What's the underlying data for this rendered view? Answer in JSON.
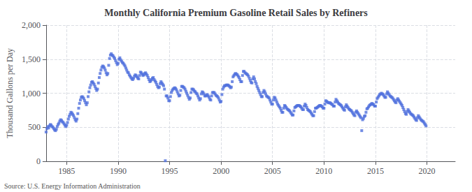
{
  "chart_data": {
    "type": "scatter",
    "title": "Monthly California Premium Gasoline Retail Sales by Refiners",
    "ylabel": "Thousand Gallons per Day",
    "annotations": [
      "Source: U.S. Energy Information Administration"
    ],
    "marker": "square",
    "grid": true,
    "xlim": [
      1983.0,
      2022.75
    ],
    "xticks": [
      1985,
      1990,
      1995,
      2000,
      2005,
      2010,
      2015,
      2020
    ],
    "ylim": [
      0,
      2000
    ],
    "yticks": [
      0,
      500,
      {
        "value": 1000,
        "label": "1,000"
      },
      {
        "value": 1500,
        "label": "1,500"
      },
      {
        "value": 2000,
        "label": "2,000"
      }
    ],
    "x": [
      1983.0,
      1983.0833333333333,
      1983.1666666666667,
      1983.25,
      1983.3333333333333,
      1983.4166666666667,
      1983.5,
      1983.5833333333333,
      1983.6666666666667,
      1983.75,
      1983.8333333333333,
      1983.9166666666667,
      1984.0,
      1984.0833333333333,
      1984.1666666666667,
      1984.25,
      1984.3333333333333,
      1984.4166666666667,
      1984.5,
      1984.5833333333333,
      1984.6666666666667,
      1984.75,
      1984.8333333333333,
      1984.9166666666667,
      1985.0,
      1985.0833333333333,
      1985.1666666666667,
      1985.25,
      1985.3333333333333,
      1985.4166666666667,
      1985.5,
      1985.5833333333333,
      1985.6666666666667,
      1985.75,
      1985.8333333333333,
      1985.9166666666667,
      1986.0,
      1986.0833333333333,
      1986.1666666666667,
      1986.25,
      1986.3333333333333,
      1986.4166666666667,
      1986.5,
      1986.5833333333333,
      1986.6666666666667,
      1986.75,
      1986.8333333333333,
      1986.9166666666667,
      1987.0,
      1987.0833333333333,
      1987.1666666666667,
      1987.25,
      1987.3333333333333,
      1987.4166666666667,
      1987.5,
      1987.5833333333333,
      1987.6666666666667,
      1987.75,
      1987.8333333333333,
      1987.9166666666667,
      1988.0,
      1988.0833333333333,
      1988.1666666666667,
      1988.25,
      1988.3333333333333,
      1988.4166666666667,
      1988.5,
      1988.5833333333333,
      1988.6666666666667,
      1988.75,
      1988.8333333333333,
      1988.9166666666667,
      1989.0,
      1989.0833333333333,
      1989.1666666666667,
      1989.25,
      1989.3333333333333,
      1989.4166666666667,
      1989.5,
      1989.5833333333333,
      1989.6666666666667,
      1989.75,
      1989.8333333333333,
      1989.9166666666667,
      1990.0,
      1990.0833333333333,
      1990.1666666666667,
      1990.25,
      1990.3333333333333,
      1990.4166666666667,
      1990.5,
      1990.5833333333333,
      1990.6666666666667,
      1990.75,
      1990.8333333333333,
      1990.9166666666667,
      1991.0,
      1991.0833333333333,
      1991.1666666666667,
      1991.25,
      1991.3333333333333,
      1991.4166666666667,
      1991.5,
      1991.5833333333333,
      1991.6666666666667,
      1991.75,
      1991.8333333333333,
      1991.9166666666667,
      1992.0,
      1992.0833333333333,
      1992.1666666666667,
      1992.25,
      1992.3333333333333,
      1992.4166666666667,
      1992.5,
      1992.5833333333333,
      1992.6666666666667,
      1992.75,
      1992.8333333333333,
      1992.9166666666667,
      1993.0,
      1993.0833333333333,
      1993.1666666666667,
      1993.25,
      1993.3333333333333,
      1993.4166666666667,
      1993.5,
      1993.5833333333333,
      1993.6666666666667,
      1993.75,
      1993.8333333333333,
      1993.9166666666667,
      1994.0,
      1994.0833333333333,
      1994.1666666666667,
      1994.25,
      1994.3333333333333,
      1994.4166666666667,
      1994.5,
      1994.5833333333333,
      1994.6666666666667,
      1994.75,
      1994.8333333333333,
      1994.9166666666667,
      1995.0,
      1995.0833333333333,
      1995.1666666666667,
      1995.25,
      1995.3333333333333,
      1995.4166666666667,
      1995.5,
      1995.5833333333333,
      1995.6666666666667,
      1995.75,
      1995.8333333333333,
      1995.9166666666667,
      1996.0,
      1996.0833333333333,
      1996.1666666666667,
      1996.25,
      1996.3333333333333,
      1996.4166666666667,
      1996.5,
      1996.5833333333333,
      1996.6666666666667,
      1996.75,
      1996.8333333333333,
      1996.9166666666667,
      1997.0,
      1997.0833333333333,
      1997.1666666666667,
      1997.25,
      1997.3333333333333,
      1997.4166666666667,
      1997.5,
      1997.5833333333333,
      1997.6666666666667,
      1997.75,
      1997.8333333333333,
      1997.9166666666667,
      1998.0,
      1998.0833333333333,
      1998.1666666666667,
      1998.25,
      1998.3333333333333,
      1998.4166666666667,
      1998.5,
      1998.5833333333333,
      1998.6666666666667,
      1998.75,
      1998.8333333333333,
      1998.9166666666667,
      1999.0,
      1999.0833333333333,
      1999.1666666666667,
      1999.25,
      1999.3333333333333,
      1999.4166666666667,
      1999.5,
      1999.5833333333333,
      1999.6666666666667,
      1999.75,
      1999.8333333333333,
      1999.9166666666667,
      2000.0,
      2000.0833333333333,
      2000.1666666666667,
      2000.25,
      2000.3333333333333,
      2000.4166666666667,
      2000.5,
      2000.5833333333333,
      2000.6666666666667,
      2000.75,
      2000.8333333333333,
      2000.9166666666667,
      2001.0,
      2001.0833333333333,
      2001.1666666666667,
      2001.25,
      2001.3333333333333,
      2001.4166666666667,
      2001.5,
      2001.5833333333333,
      2001.6666666666667,
      2001.75,
      2001.8333333333333,
      2001.9166666666667,
      2002.0,
      2002.0833333333333,
      2002.1666666666667,
      2002.25,
      2002.3333333333333,
      2002.4166666666667,
      2002.5,
      2002.5833333333333,
      2002.6666666666667,
      2002.75,
      2002.8333333333333,
      2002.9166666666667,
      2003.0,
      2003.0833333333333,
      2003.1666666666667,
      2003.25,
      2003.3333333333333,
      2003.4166666666667,
      2003.5,
      2003.5833333333333,
      2003.6666666666667,
      2003.75,
      2003.8333333333333,
      2003.9166666666667,
      2004.0,
      2004.0833333333333,
      2004.1666666666667,
      2004.25,
      2004.3333333333333,
      2004.4166666666667,
      2004.5,
      2004.5833333333333,
      2004.6666666666667,
      2004.75,
      2004.8333333333333,
      2004.9166666666667,
      2005.0,
      2005.0833333333333,
      2005.1666666666667,
      2005.25,
      2005.3333333333333,
      2005.4166666666667,
      2005.5,
      2005.5833333333333,
      2005.6666666666667,
      2005.75,
      2005.8333333333333,
      2005.9166666666667,
      2006.0,
      2006.0833333333333,
      2006.1666666666667,
      2006.25,
      2006.3333333333333,
      2006.4166666666667,
      2006.5,
      2006.5833333333333,
      2006.6666666666667,
      2006.75,
      2006.8333333333333,
      2006.9166666666667,
      2007.0,
      2007.0833333333333,
      2007.1666666666667,
      2007.25,
      2007.3333333333333,
      2007.4166666666667,
      2007.5,
      2007.5833333333333,
      2007.6666666666667,
      2007.75,
      2007.8333333333333,
      2007.9166666666667,
      2008.0,
      2008.0833333333333,
      2008.1666666666667,
      2008.25,
      2008.3333333333333,
      2008.4166666666667,
      2008.5,
      2008.5833333333333,
      2008.6666666666667,
      2008.75,
      2008.8333333333333,
      2008.9166666666667,
      2009.0,
      2009.0833333333333,
      2009.1666666666667,
      2009.25,
      2009.3333333333333,
      2009.4166666666667,
      2009.5,
      2009.5833333333333,
      2009.6666666666667,
      2009.75,
      2009.8333333333333,
      2009.9166666666667,
      2010.0,
      2010.0833333333333,
      2010.1666666666667,
      2010.25,
      2010.3333333333333,
      2010.4166666666667,
      2010.5,
      2010.5833333333333,
      2010.6666666666667,
      2010.75,
      2010.8333333333333,
      2010.9166666666667,
      2011.0,
      2011.0833333333333,
      2011.1666666666667,
      2011.25,
      2011.3333333333333,
      2011.4166666666667,
      2011.5,
      2011.5833333333333,
      2011.6666666666667,
      2011.75,
      2011.8333333333333,
      2011.9166666666667,
      2012.0,
      2012.0833333333333,
      2012.1666666666667,
      2012.25,
      2012.3333333333333,
      2012.4166666666667,
      2012.5,
      2012.5833333333333,
      2012.6666666666667,
      2012.75,
      2012.8333333333333,
      2012.9166666666667,
      2013.0,
      2013.0833333333333,
      2013.1666666666667,
      2013.25,
      2013.3333333333333,
      2013.4166666666667,
      2013.5,
      2013.5833333333333,
      2013.6666666666667,
      2013.75,
      2013.8333333333333,
      2013.9166666666667,
      2014.0,
      2014.0833333333333,
      2014.1666666666667,
      2014.25,
      2014.3333333333333,
      2014.4166666666667,
      2014.5,
      2014.5833333333333,
      2014.6666666666667,
      2014.75,
      2014.8333333333333,
      2014.9166666666667,
      2015.0,
      2015.0833333333333,
      2015.1666666666667,
      2015.25,
      2015.3333333333333,
      2015.4166666666667,
      2015.5,
      2015.5833333333333,
      2015.6666666666667,
      2015.75,
      2015.8333333333333,
      2015.9166666666667,
      2016.0,
      2016.0833333333333,
      2016.1666666666667,
      2016.25,
      2016.3333333333333,
      2016.4166666666667,
      2016.5,
      2016.5833333333333,
      2016.6666666666667,
      2016.75,
      2016.8333333333333,
      2016.9166666666667,
      2017.0,
      2017.0833333333333,
      2017.1666666666667,
      2017.25,
      2017.3333333333333,
      2017.4166666666667,
      2017.5,
      2017.5833333333333,
      2017.6666666666667,
      2017.75,
      2017.8333333333333,
      2017.9166666666667,
      2018.0,
      2018.0833333333333,
      2018.1666666666667,
      2018.25,
      2018.3333333333333,
      2018.4166666666667,
      2018.5,
      2018.5833333333333,
      2018.6666666666667,
      2018.75,
      2018.8333333333333,
      2018.9166666666667,
      2019.0,
      2019.0833333333333,
      2019.1666666666667,
      2019.25,
      2019.3333333333333,
      2019.4166666666667,
      2019.5,
      2019.5833333333333,
      2019.6666666666667,
      2019.75,
      2019.8333333333333,
      2019.9166666666667
    ],
    "values": [
      430,
      480,
      510,
      490,
      520,
      540,
      530,
      510,
      500,
      480,
      460,
      450,
      470,
      510,
      540,
      560,
      590,
      610,
      600,
      580,
      570,
      550,
      530,
      510,
      530,
      570,
      620,
      660,
      690,
      720,
      710,
      690,
      670,
      640,
      610,
      590,
      620,
      700,
      780,
      850,
      900,
      940,
      950,
      940,
      920,
      890,
      860,
      830,
      860,
      950,
      1020,
      1080,
      1120,
      1160,
      1170,
      1150,
      1130,
      1100,
      1070,
      1040,
      1060,
      1150,
      1230,
      1290,
      1340,
      1380,
      1400,
      1390,
      1370,
      1340,
      1300,
      1270,
      1290,
      1410,
      1510,
      1560,
      1580,
      1560,
      1550,
      1530,
      1510,
      1480,
      1450,
      1420,
      1440,
      1500,
      1520,
      1490,
      1470,
      1450,
      1440,
      1420,
      1400,
      1370,
      1340,
      1310,
      1300,
      1270,
      1250,
      1230,
      1210,
      1200,
      1220,
      1250,
      1270,
      1260,
      1240,
      1220,
      1210,
      1260,
      1310,
      1300,
      1280,
      1260,
      1270,
      1290,
      1300,
      1280,
      1260,
      1230,
      1200,
      1170,
      1180,
      1200,
      1220,
      1230,
      1200,
      1180,
      1160,
      1130,
      1100,
      1080,
      1090,
      1140,
      1170,
      1150,
      1130,
      1110,
      1060,
      8,
      960,
      960,
      930,
      890,
      890,
      950,
      1010,
      1040,
      1060,
      1070,
      1080,
      1070,
      1050,
      1020,
      990,
      960,
      970,
      1040,
      1100,
      1100,
      1090,
      1080,
      1060,
      1030,
      1000,
      970,
      940,
      910,
      930,
      1010,
      1060,
      1060,
      1050,
      1030,
      1020,
      1000,
      990,
      960,
      930,
      900,
      920,
      990,
      1020,
      1010,
      990,
      960,
      960,
      970,
      980,
      960,
      940,
      910,
      900,
      960,
      1010,
      1010,
      1010,
      990,
      970,
      960,
      950,
      930,
      900,
      870,
      880,
      980,
      1060,
      1090,
      1110,
      1110,
      1120,
      1120,
      1120,
      1110,
      1100,
      1080,
      1090,
      1170,
      1240,
      1260,
      1280,
      1290,
      1280,
      1270,
      1250,
      1230,
      1200,
      1170,
      1170,
      1260,
      1320,
      1320,
      1300,
      1290,
      1280,
      1270,
      1250,
      1220,
      1190,
      1160,
      1150,
      1210,
      1240,
      1210,
      1170,
      1140,
      1100,
      1070,
      1040,
      1010,
      980,
      950,
      950,
      1010,
      1040,
      1020,
      990,
      960,
      950,
      940,
      930,
      900,
      870,
      840,
      840,
      900,
      940,
      930,
      900,
      870,
      840,
      820,
      800,
      780,
      750,
      720,
      720,
      780,
      820,
      810,
      790,
      770,
      760,
      750,
      740,
      720,
      700,
      680,
      680,
      740,
      790,
      800,
      810,
      820,
      820,
      820,
      810,
      800,
      780,
      760,
      760,
      810,
      840,
      820,
      790,
      760,
      750,
      740,
      730,
      710,
      690,
      670,
      670,
      730,
      780,
      780,
      790,
      800,
      810,
      820,
      820,
      810,
      800,
      780,
      780,
      840,
      890,
      880,
      870,
      860,
      860,
      860,
      850,
      840,
      830,
      810,
      810,
      870,
      910,
      890,
      870,
      850,
      840,
      830,
      820,
      800,
      780,
      760,
      750,
      800,
      830,
      810,
      790,
      770,
      760,
      750,
      740,
      720,
      700,
      680,
      670,
      720,
      740,
      720,
      700,
      680,
      660,
      640,
      450,
      610,
      630,
      660,
      670,
      720,
      770,
      780,
      800,
      820,
      830,
      840,
      850,
      840,
      830,
      810,
      810,
      870,
      920,
      940,
      960,
      980,
      990,
      1000,
      990,
      980,
      960,
      940,
      940,
      990,
      1020,
      1000,
      980,
      960,
      950,
      940,
      930,
      910,
      890,
      870,
      860,
      900,
      920,
      900,
      880,
      860,
      840,
      820,
      790,
      760,
      730,
      700,
      690,
      730,
      760,
      740,
      720,
      700,
      690,
      680,
      670,
      650,
      630,
      610,
      600,
      640,
      670,
      650,
      630,
      610,
      600,
      590,
      580,
      560,
      540,
      520
    ]
  }
}
